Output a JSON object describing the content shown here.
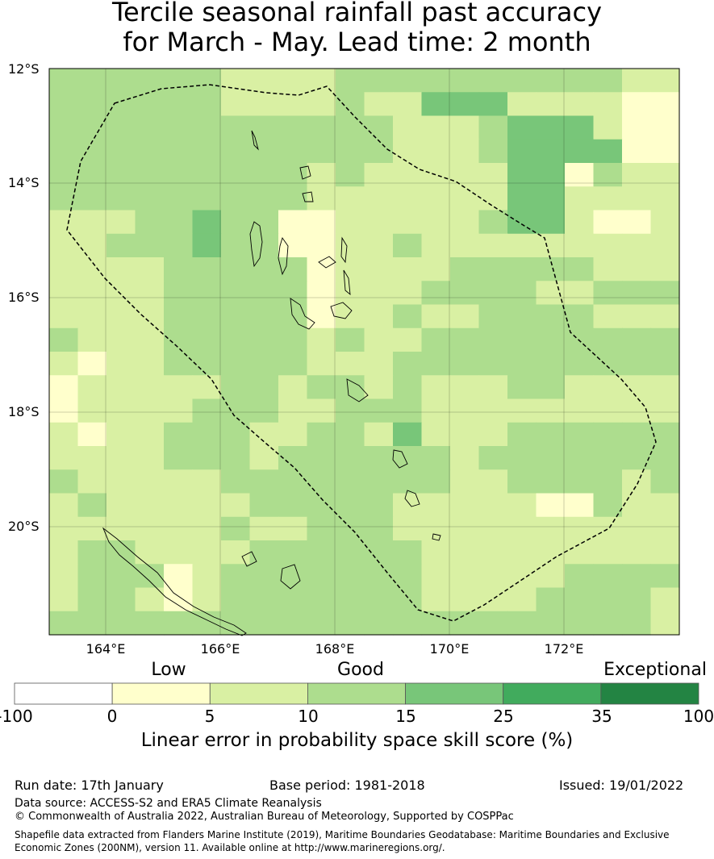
{
  "title_line1": "Tercile seasonal rainfall past accuracy",
  "title_line2": "for March - May. Lead time: 2 month",
  "lat_labels": [
    "12°S",
    "14°S",
    "16°S",
    "18°S",
    "20°S"
  ],
  "lon_labels": [
    "164°E",
    "166°E",
    "168°E",
    "170°E",
    "172°E"
  ],
  "legend": {
    "category_words": [
      "Low",
      "Good",
      "Exceptional"
    ],
    "ticks": [
      "-100",
      "0",
      "5",
      "10",
      "15",
      "25",
      "35",
      "100"
    ],
    "colors": [
      "#ffffff",
      "#ffffcc",
      "#d9f0a3",
      "#addd8e",
      "#78c679",
      "#41ab5d",
      "#238443"
    ],
    "label": "Linear error in probability space skill score (%)"
  },
  "grid_classes": [
    "3333332222333333333322",
    "3333332222322444222211",
    "3333333333332223444211",
    "3333333333332223444411",
    "3333333332322222441322",
    "3333333332222222442222",
    "2223343311222223442112",
    "2233343311223222222222",
    "2222333331222233333222",
    "2222333331222333322333",
    "2222333331223223333222",
    "3222333332322333333333",
    "2122333332223333333333",
    "1222223323323222332222",
    "1222233322333222222222",
    "2122333223324222333333",
    "2222333233333323333333",
    "3222223333333322333323",
    "2322222333332222211322",
    "2222223223332222222222",
    "2332222333333222222222",
    "2333123333333222223333",
    "2332123333333222233332",
    "3333333333333333333332"
  ],
  "footer": {
    "run_date": "Run date: 17th January",
    "base_period": "Base period: 1981-2018",
    "issued": "Issued: 19/01/2022",
    "data_source": "Data source: ACCESS-S2 and ERA5 Climate Reanalysis",
    "copyright": "© Commonwealth of Australia 2022, Australian Bureau of Meteorology, Supported by COSPPac",
    "shapefile_line1": "Shapefile data extracted from Flanders Marine Institute (2019), Maritime Boundaries Geodatabase: Maritime Boundaries and Exclusive",
    "shapefile_line2": "Economic Zones (200NM), version 11. Available online at http://www.marineregions.org/."
  }
}
